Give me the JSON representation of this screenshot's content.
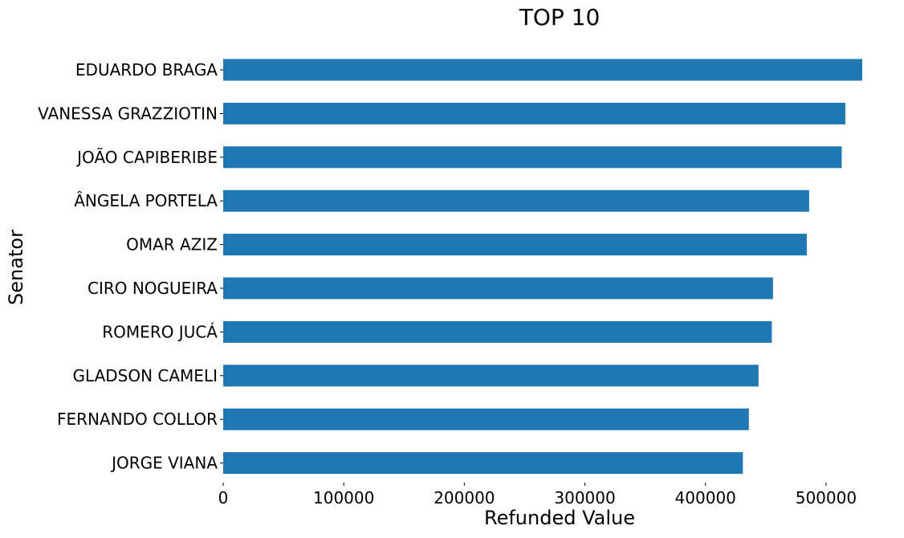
{
  "chart_data": {
    "type": "bar",
    "orientation": "horizontal",
    "title": "TOP 10",
    "xlabel": "Refunded Value",
    "ylabel": "Senator",
    "xlim": [
      0,
      540000
    ],
    "x_ticks": [
      0,
      100000,
      200000,
      300000,
      400000,
      500000
    ],
    "x_tick_labels": [
      "0",
      "100000",
      "200000",
      "300000",
      "400000",
      "500000"
    ],
    "categories": [
      "EDUARDO BRAGA",
      "VANESSA GRAZZIOTIN",
      "JOÃO CAPIBERIBE",
      "ÂNGELA PORTELA",
      "OMAR AZIZ",
      "CIRO NOGUEIRA",
      "ROMERO JUCÁ",
      "GLADSON CAMELI",
      "FERNANDO COLLOR",
      "JORGE VIANA"
    ],
    "values": [
      530000,
      516000,
      513000,
      486000,
      484000,
      456000,
      455000,
      444000,
      436000,
      431000
    ],
    "bar_color": "#1f77b4",
    "grid": false,
    "legend": "none"
  }
}
